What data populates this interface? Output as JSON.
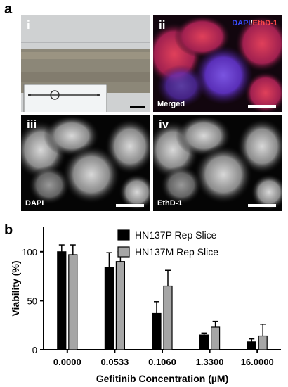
{
  "figure": {
    "panel_a_label": "a",
    "panel_b_label": "b",
    "images": [
      {
        "roman": "i",
        "label": ""
      },
      {
        "roman": "ii",
        "label": "Merged"
      },
      {
        "roman": "iii",
        "label": "DAPI"
      },
      {
        "roman": "iv",
        "label": "EthD-1"
      }
    ],
    "legend_top": {
      "dapi": "DAPI",
      "sep": "/",
      "ethd": "EthD-1"
    },
    "colors": {
      "dapi_blue": "#2b2bd8",
      "ethd_red": "#e0303e",
      "bar_black": "#000000",
      "bar_gray": "#a6a6a6"
    }
  },
  "chart_data": {
    "type": "bar",
    "title": "",
    "xlabel": "Gefitinib Concentration (µM)",
    "ylabel": "Viability (%)",
    "categories": [
      "0.0000",
      "0.0533",
      "0.1060",
      "1.3300",
      "16.0000"
    ],
    "ylim": [
      0,
      125
    ],
    "yticks": [
      0,
      50,
      100
    ],
    "legend_position": "top-right",
    "series": [
      {
        "name": "HN137P Rep Slice",
        "color": "#000000",
        "values": [
          100,
          84,
          37,
          15,
          8
        ],
        "errors": [
          7,
          15,
          12,
          2,
          3
        ]
      },
      {
        "name": "HN137M Rep Slice",
        "color": "#a6a6a6",
        "values": [
          97,
          90,
          65,
          23,
          14
        ],
        "errors": [
          10,
          10,
          16,
          6,
          12
        ]
      }
    ]
  }
}
